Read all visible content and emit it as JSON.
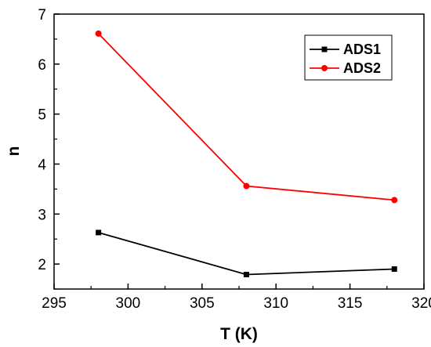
{
  "chart_data": {
    "type": "line",
    "title": "",
    "xlabel": "T (K)",
    "ylabel": "n",
    "xlim": [
      295,
      320
    ],
    "ylim": [
      1.5,
      7
    ],
    "x_ticks": [
      295,
      300,
      305,
      310,
      315,
      320
    ],
    "y_ticks": [
      2,
      3,
      4,
      5,
      6,
      7
    ],
    "x_tick_labels": [
      "295",
      "300",
      "305",
      "310",
      "315",
      "320"
    ],
    "y_tick_labels": [
      "2",
      "3",
      "4",
      "5",
      "6",
      "7"
    ],
    "grid": false,
    "legend_position": "top-right",
    "series": [
      {
        "name": "ADS1",
        "color": "#000000",
        "marker": "square",
        "x": [
          298,
          308,
          318
        ],
        "y": [
          2.63,
          1.79,
          1.9
        ]
      },
      {
        "name": "ADS2",
        "color": "#ff0000",
        "marker": "circle",
        "x": [
          298,
          308,
          318
        ],
        "y": [
          6.61,
          3.56,
          3.28
        ]
      }
    ]
  }
}
